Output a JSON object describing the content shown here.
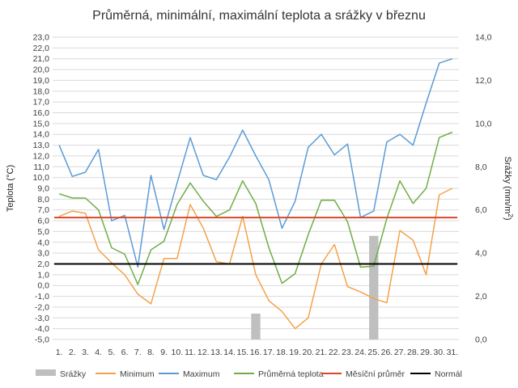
{
  "chart_data": {
    "type": "line",
    "title": "Průměrná, minimální, maximální teplota a srážky v březnu",
    "ylabel": "Teplota (°C)",
    "y2label_main": "Srážky (mm/m",
    "y2label_sup": "2",
    "y2label_end": ")",
    "ylim": [
      -5,
      23
    ],
    "yticks": [
      "-5,0",
      "-4,0",
      "-3,0",
      "-2,0",
      "-1,0",
      "0,0",
      "1,0",
      "2,0",
      "3,0",
      "4,0",
      "5,0",
      "6,0",
      "7,0",
      "8,0",
      "9,0",
      "10,0",
      "11,0",
      "12,0",
      "13,0",
      "14,0",
      "15,0",
      "16,0",
      "17,0",
      "18,0",
      "19,0",
      "20,0",
      "21,0",
      "22,0",
      "23,0"
    ],
    "y2lim": [
      0,
      14
    ],
    "y2ticks": [
      "0,0",
      "2,0",
      "4,0",
      "6,0",
      "8,0",
      "10,0",
      "12,0",
      "14,0"
    ],
    "categories": [
      "1.",
      "2.",
      "3.",
      "4.",
      "5.",
      "6.",
      "7.",
      "8.",
      "9.",
      "10.",
      "11.",
      "12.",
      "13.",
      "14.",
      "15.",
      "16.",
      "17.",
      "18.",
      "19.",
      "20.",
      "21.",
      "22.",
      "23.",
      "24.",
      "25.",
      "26.",
      "27.",
      "28.",
      "29.",
      "30.",
      "31."
    ],
    "grid": true,
    "legend_position": "bottom",
    "bars": {
      "name": "Srážky",
      "axis": "right",
      "color": "#bfbfbf",
      "values": [
        0,
        0,
        0,
        0,
        0,
        0,
        0,
        0,
        0,
        0,
        0,
        0,
        0,
        0,
        0,
        1.2,
        0,
        0,
        0,
        0,
        0,
        0,
        0,
        0,
        4.8,
        0,
        0,
        0,
        0,
        0,
        0
      ]
    },
    "series": [
      {
        "name": "Minimum",
        "color": "#f4a24a",
        "values": [
          6.4,
          6.9,
          6.7,
          3.3,
          2.1,
          1.0,
          -0.8,
          -1.7,
          2.5,
          2.5,
          7.5,
          5.3,
          2.2,
          2.0,
          6.4,
          1.0,
          -1.4,
          -2.4,
          -4.0,
          -3.0,
          2.0,
          3.8,
          -0.1,
          -0.6,
          -1.2,
          -1.6,
          5.1,
          4.2,
          1.0,
          8.4,
          9.0
        ]
      },
      {
        "name": "Maximum",
        "color": "#5b9bd5",
        "values": [
          13.0,
          10.1,
          10.5,
          12.6,
          6.0,
          6.5,
          1.7,
          10.2,
          5.2,
          9.5,
          13.7,
          10.2,
          9.8,
          11.9,
          14.4,
          12.0,
          9.8,
          5.3,
          7.8,
          12.8,
          14.0,
          12.1,
          13.1,
          6.3,
          6.9,
          13.3,
          14.0,
          13.0,
          16.9,
          20.6,
          21.0
        ]
      },
      {
        "name": "Průměrná teplota",
        "color": "#70ad47",
        "values": [
          8.5,
          8.1,
          8.1,
          7.0,
          3.5,
          2.9,
          0.1,
          3.3,
          4.1,
          7.5,
          9.5,
          7.8,
          6.4,
          7.0,
          9.7,
          7.6,
          3.5,
          0.2,
          1.1,
          4.7,
          7.9,
          7.9,
          5.9,
          1.7,
          1.8,
          6.2,
          9.7,
          7.6,
          9.0,
          13.7,
          14.2
        ]
      },
      {
        "name": "Měsíční průměr",
        "color": "#d9472b",
        "values": [
          6.3,
          6.3,
          6.3,
          6.3,
          6.3,
          6.3,
          6.3,
          6.3,
          6.3,
          6.3,
          6.3,
          6.3,
          6.3,
          6.3,
          6.3,
          6.3,
          6.3,
          6.3,
          6.3,
          6.3,
          6.3,
          6.3,
          6.3,
          6.3,
          6.3,
          6.3,
          6.3,
          6.3,
          6.3,
          6.3,
          6.3
        ]
      },
      {
        "name": "Normál",
        "color": "#000000",
        "values": [
          2.0,
          2.0,
          2.0,
          2.0,
          2.0,
          2.0,
          2.0,
          2.0,
          2.0,
          2.0,
          2.0,
          2.0,
          2.0,
          2.0,
          2.0,
          2.0,
          2.0,
          2.0,
          2.0,
          2.0,
          2.0,
          2.0,
          2.0,
          2.0,
          2.0,
          2.0,
          2.0,
          2.0,
          2.0,
          2.0,
          2.0
        ]
      }
    ]
  }
}
